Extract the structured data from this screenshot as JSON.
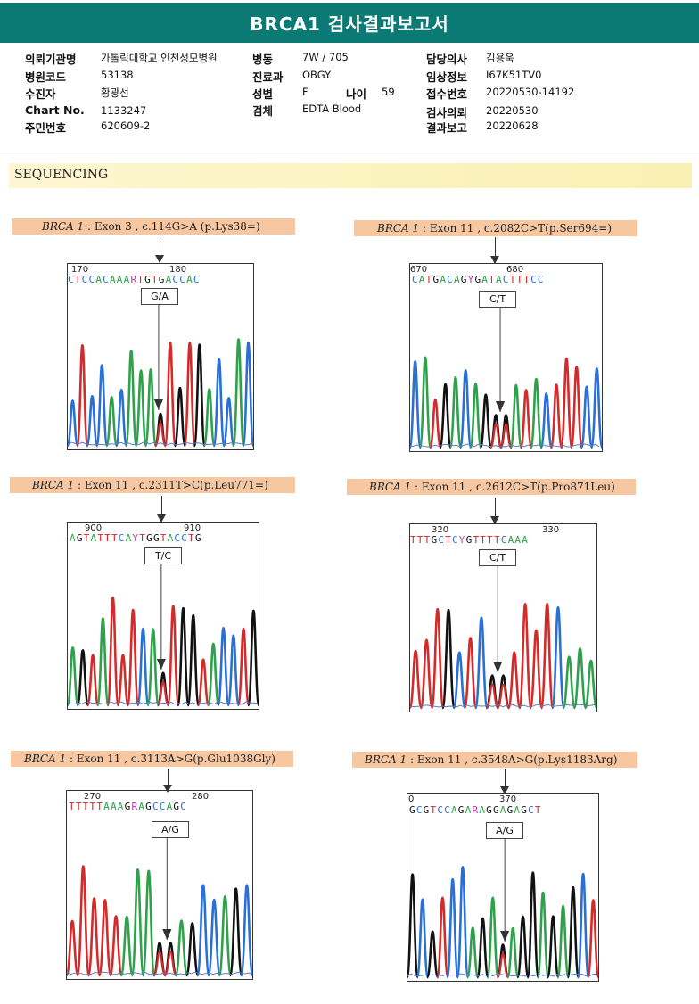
{
  "report": {
    "title": "BRCA1 검사결과보고서"
  },
  "info": {
    "institution": {
      "label": "의뢰기관명",
      "value": "가톨릭대학교 인천성모병원"
    },
    "hospital_code": {
      "label": "병원코드",
      "value": "53138"
    },
    "patient": {
      "label": "수진자",
      "value": "황광선"
    },
    "chart_no": {
      "label": "Chart No.",
      "value": "1133247"
    },
    "resident_no": {
      "label": "주민번호",
      "value": "620609-2"
    },
    "ward": {
      "label": "병동",
      "value": "7W / 705"
    },
    "department": {
      "label": "진료과",
      "value": "OBGY"
    },
    "sex": {
      "label": "성별",
      "value": "F"
    },
    "age": {
      "label": "나이",
      "value": "59"
    },
    "specimen": {
      "label": "검체",
      "value": "EDTA Blood"
    },
    "doctor": {
      "label": "담당의사",
      "value": "김용욱"
    },
    "clinical_info": {
      "label": "임상정보",
      "value": "I67K51TV0"
    },
    "receipt_no": {
      "label": "접수번호",
      "value": "20220530-14192"
    },
    "request_date": {
      "label": "검사의뢰",
      "value": "20220530"
    },
    "report_date": {
      "label": "결과보고",
      "value": "20220628"
    }
  },
  "section": {
    "title": "SEQUENCING"
  },
  "colors": {
    "A": "#2ea24a",
    "C": "#2a6fd6",
    "G": "#111111",
    "T": "#d42a2a",
    "accent": "#0b7a74"
  },
  "variants": [
    {
      "gene": "BRCA 1",
      "desc": " : Exon 3 , c.114G>A (p.Lys38=)",
      "genotype": "G/A",
      "pos1": "170",
      "pos2": "180",
      "seq": "CTCCACAAARTGTGACCAC"
    },
    {
      "gene": "BRCA 1",
      "desc": " : Exon 11 , c.2082C>T(p.Ser694=)",
      "genotype": "C/T",
      "pos1": "670",
      "pos2": "680",
      "seq": "CATGACAGYGATACTTTCC"
    },
    {
      "gene": "BRCA 1",
      "desc": " : Exon 11 , c.2311T>C(p.Leu771=)",
      "genotype": "T/C",
      "pos1": "900",
      "pos2": "910",
      "seq": "AGTATTTCAYTGGTACCTG"
    },
    {
      "gene": "BRCA 1",
      "desc": " : Exon 11 , c.2612C>T(p.Pro871Leu)",
      "genotype": "C/T",
      "pos1": "320",
      "pos2": "330",
      "seq": "TTTGCTCYGTTTTCAAA"
    },
    {
      "gene": "BRCA 1",
      "desc": " : Exon 11 , c.3113A>G(p.Glu1038Gly)",
      "genotype": "A/G",
      "pos1": "270",
      "pos2": "280",
      "seq": "TTTTTAAAGRAGCCAGC"
    },
    {
      "gene": "BRCA 1",
      "desc": " : Exon 11 , c.3548A>G(p.Lys1183Arg)",
      "genotype": "A/G",
      "pos1": "0",
      "pos2": "370",
      "seq": "GCGTCCAGARAGGAGAGCT"
    }
  ]
}
